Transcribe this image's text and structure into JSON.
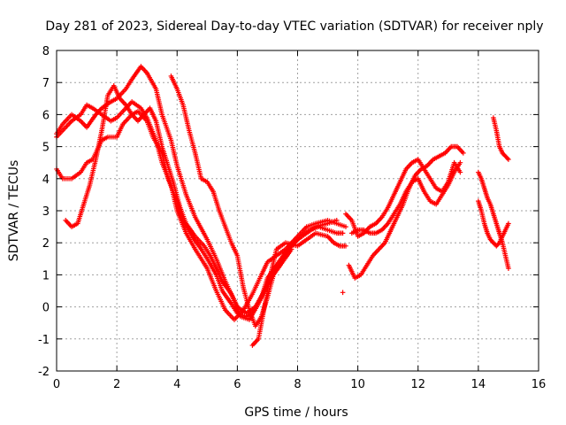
{
  "chart_data": {
    "type": "scatter",
    "title": "Day 281 of 2023, Sidereal Day-to-day VTEC variation (SDTVAR) for receiver nply",
    "xlabel": "GPS time / hours",
    "ylabel": "SDTVAR / TECUs",
    "xlim": [
      0,
      16
    ],
    "ylim": [
      -2,
      8
    ],
    "xticks": [
      "0",
      "2",
      "4",
      "6",
      "8",
      "10",
      "12",
      "14",
      "16"
    ],
    "yticks": [
      "-2",
      "-1",
      "0",
      "1",
      "2",
      "3",
      "4",
      "5",
      "6",
      "7",
      "8"
    ],
    "grid": true,
    "marker": "+",
    "color": "#ff0000",
    "series": [
      {
        "name": "track-1",
        "x": [
          0.0,
          0.3,
          0.5,
          0.8,
          1.0,
          1.2,
          1.5,
          1.8,
          2.0,
          2.3,
          2.5,
          2.8,
          3.0,
          3.3,
          3.5,
          3.8,
          4.0,
          4.3,
          4.6,
          5.0,
          5.3,
          5.6,
          5.9,
          6.2,
          6.5,
          6.8,
          7.0,
          7.3,
          7.6,
          8.0,
          8.3,
          8.6,
          9.0,
          9.3,
          9.6
        ],
        "y": [
          5.3,
          5.6,
          5.8,
          6.0,
          6.3,
          6.2,
          6.0,
          5.8,
          5.9,
          6.2,
          6.4,
          6.2,
          5.9,
          5.2,
          4.5,
          3.8,
          3.0,
          2.3,
          1.8,
          1.2,
          0.5,
          -0.1,
          -0.4,
          -0.1,
          0.4,
          1.0,
          1.4,
          1.6,
          1.8,
          2.2,
          2.5,
          2.6,
          2.7,
          2.6,
          2.5
        ]
      },
      {
        "name": "track-2",
        "x": [
          0.0,
          0.2,
          0.5,
          0.8,
          1.0,
          1.3,
          1.5,
          1.8,
          2.0,
          2.3,
          2.5,
          2.8,
          3.0,
          3.3,
          3.5,
          3.8,
          4.0,
          4.3,
          4.6,
          5.0,
          5.3,
          5.6,
          5.9,
          6.1,
          6.4,
          6.7,
          7.0,
          7.3,
          7.6,
          8.0,
          8.3,
          8.6,
          9.0,
          9.3
        ],
        "y": [
          5.4,
          5.7,
          6.0,
          5.8,
          5.6,
          6.0,
          6.2,
          6.4,
          6.5,
          6.8,
          7.1,
          7.5,
          7.3,
          6.8,
          6.0,
          5.2,
          4.4,
          3.5,
          2.8,
          2.1,
          1.5,
          0.8,
          0.2,
          -0.3,
          -0.4,
          0.1,
          0.7,
          1.3,
          1.7,
          2.1,
          2.3,
          2.5,
          2.6,
          2.7
        ]
      },
      {
        "name": "track-3",
        "x": [
          0.0,
          0.2,
          0.5,
          0.8,
          1.0,
          1.2,
          1.5,
          1.7,
          2.0,
          2.2,
          2.5,
          2.7,
          3.0,
          3.2,
          3.5,
          3.7,
          4.0,
          4.2,
          4.5,
          4.8,
          5.0,
          5.3,
          5.5,
          5.8,
          6.0,
          6.3,
          6.5,
          6.8,
          7.0,
          7.3
        ],
        "y": [
          4.3,
          4.0,
          4.0,
          4.2,
          4.5,
          4.6,
          5.2,
          5.3,
          5.3,
          5.7,
          6.0,
          6.1,
          5.8,
          5.3,
          4.8,
          4.0,
          3.3,
          2.7,
          2.2,
          1.8,
          1.5,
          1.0,
          0.5,
          0.1,
          -0.2,
          -0.3,
          -0.2,
          0.3,
          0.9,
          1.3
        ]
      },
      {
        "name": "track-4",
        "x": [
          0.3,
          0.5,
          0.7,
          0.9,
          1.1,
          1.3,
          1.5,
          1.7,
          1.9,
          2.1,
          2.3,
          2.5,
          2.7,
          2.9,
          3.1,
          3.3,
          3.5,
          3.7,
          3.9,
          4.1,
          4.3,
          4.6,
          4.9,
          5.1,
          5.3,
          5.5,
          5.8,
          6.0,
          6.3,
          6.6,
          6.9,
          7.2,
          7.5,
          7.8
        ],
        "y": [
          2.7,
          2.5,
          2.6,
          3.2,
          3.8,
          4.6,
          5.5,
          6.6,
          6.9,
          6.5,
          6.3,
          6.0,
          5.8,
          6.0,
          6.2,
          5.8,
          5.0,
          4.4,
          3.8,
          3.1,
          2.6,
          2.2,
          1.9,
          1.6,
          1.2,
          0.8,
          0.4,
          0.0,
          -0.2,
          0.0,
          0.5,
          1.0,
          1.4,
          1.8
        ]
      },
      {
        "name": "track-5",
        "x": [
          3.8,
          4.0,
          4.2,
          4.4,
          4.6,
          4.8,
          5.0,
          5.2,
          5.4,
          5.6,
          5.8,
          6.0,
          6.2,
          6.4,
          6.6,
          6.8,
          7.0,
          7.2,
          7.5,
          7.8,
          8.1,
          8.4,
          8.7,
          9.0,
          9.3,
          9.5
        ],
        "y": [
          7.2,
          6.8,
          6.3,
          5.5,
          4.8,
          4.0,
          3.9,
          3.6,
          3.0,
          2.5,
          2.0,
          1.6,
          0.6,
          -0.1,
          -0.6,
          -0.3,
          0.3,
          1.0,
          1.5,
          1.9,
          2.2,
          2.4,
          2.5,
          2.4,
          2.3,
          2.3
        ]
      },
      {
        "name": "track-6",
        "x": [
          6.5,
          6.7,
          6.9,
          7.1,
          7.3,
          7.6,
          8.0,
          8.3,
          8.6,
          9.0,
          9.2,
          9.4,
          9.6
        ],
        "y": [
          -1.2,
          -1.0,
          0.0,
          1.0,
          1.8,
          2.0,
          1.9,
          2.1,
          2.3,
          2.2,
          2.0,
          1.9,
          1.9
        ]
      },
      {
        "name": "track-7",
        "x": [
          9.7,
          9.9,
          10.1,
          10.3,
          10.5,
          10.7,
          10.9,
          11.1,
          11.3,
          11.5,
          11.7,
          11.9,
          12.1,
          12.3,
          12.5,
          12.7,
          12.9,
          13.1,
          13.3,
          13.5
        ],
        "y": [
          1.3,
          0.9,
          1.0,
          1.3,
          1.6,
          1.8,
          2.0,
          2.4,
          2.8,
          3.2,
          3.7,
          4.1,
          4.3,
          4.4,
          4.6,
          4.7,
          4.8,
          5.0,
          5.0,
          4.8
        ]
      },
      {
        "name": "track-8",
        "x": [
          9.6,
          9.8,
          10.0,
          10.2,
          10.4,
          10.6,
          10.8,
          11.0,
          11.2,
          11.4,
          11.6,
          11.8,
          12.0,
          12.2,
          12.4,
          12.6,
          12.8,
          13.0,
          13.2,
          13.4
        ],
        "y": [
          2.9,
          2.7,
          2.2,
          2.3,
          2.5,
          2.6,
          2.8,
          3.1,
          3.5,
          3.9,
          4.3,
          4.5,
          4.6,
          4.3,
          4.0,
          3.7,
          3.6,
          3.9,
          4.5,
          4.2
        ]
      },
      {
        "name": "track-9",
        "x": [
          9.8,
          10.0,
          10.2,
          10.4,
          10.6,
          10.8,
          11.0,
          11.2,
          11.4,
          11.6,
          11.8,
          12.0,
          12.2,
          12.4,
          12.6,
          12.8,
          13.0,
          13.2,
          13.4
        ],
        "y": [
          2.3,
          2.4,
          2.4,
          2.3,
          2.3,
          2.4,
          2.6,
          2.9,
          3.2,
          3.6,
          3.9,
          4.0,
          3.6,
          3.3,
          3.2,
          3.5,
          3.8,
          4.2,
          4.5
        ]
      },
      {
        "name": "track-10",
        "x": [
          14.0,
          14.1,
          14.2,
          14.3,
          14.4,
          14.5,
          14.6,
          14.7,
          14.8,
          14.9,
          15.0
        ],
        "y": [
          3.3,
          3.0,
          2.6,
          2.3,
          2.1,
          2.0,
          1.9,
          2.0,
          2.2,
          2.4,
          2.6
        ]
      },
      {
        "name": "track-11",
        "x": [
          14.0,
          14.1,
          14.2,
          14.3,
          14.4,
          14.5,
          14.6,
          14.7,
          14.8,
          14.9,
          15.0
        ],
        "y": [
          4.2,
          4.0,
          3.7,
          3.4,
          3.2,
          2.9,
          2.6,
          2.3,
          2.0,
          1.6,
          1.2
        ]
      },
      {
        "name": "track-12",
        "x": [
          14.5,
          14.6,
          14.7,
          14.8,
          14.9,
          15.0
        ],
        "y": [
          5.9,
          5.5,
          5.0,
          4.8,
          4.7,
          4.6
        ]
      },
      {
        "name": "isolated-points",
        "x": [
          9.5
        ],
        "y": [
          0.45
        ]
      }
    ]
  }
}
